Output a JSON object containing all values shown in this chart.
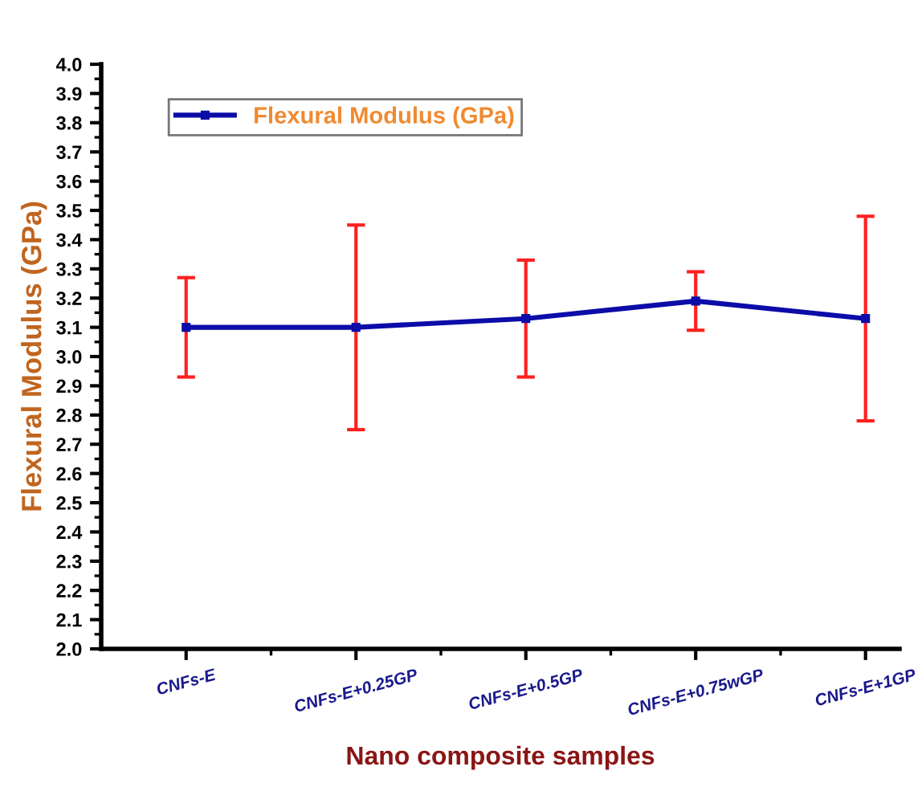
{
  "chart_data": {
    "type": "line",
    "xlabel": "Nano composite samples",
    "ylabel": "Flexural Modulus (GPa)",
    "categories": [
      "CNFs-E",
      "CNFs-E+0.25GP",
      "CNFs-E+0.5GP",
      "CNFs-E+0.75wGP",
      "CNFs-E+1GP"
    ],
    "series": [
      {
        "name": "Flexural Modulus (GPa)",
        "color": "#0c0ca8",
        "values": [
          3.1,
          3.1,
          3.13,
          3.19,
          3.13
        ],
        "errors": [
          0.17,
          0.35,
          0.2,
          0.1,
          0.35
        ]
      }
    ],
    "ylim": [
      2.0,
      4.0
    ],
    "yticks": [
      {
        "value": 2,
        "label": "2.0"
      },
      {
        "value": 2.1,
        "label": "2.1"
      },
      {
        "value": 2.2,
        "label": "2.2"
      },
      {
        "value": 2.3,
        "label": "2.3"
      },
      {
        "value": 2.4,
        "label": "2.4"
      },
      {
        "value": 2.5,
        "label": "2.5"
      },
      {
        "value": 2.6,
        "label": "2.6"
      },
      {
        "value": 2.7,
        "label": "2.7"
      },
      {
        "value": 2.8,
        "label": "2.8"
      },
      {
        "value": 2.9,
        "label": "2.9"
      },
      {
        "value": 3,
        "label": "3.0"
      },
      {
        "value": 3.1,
        "label": "3.1"
      },
      {
        "value": 3.2,
        "label": "3.2"
      },
      {
        "value": 3.3,
        "label": "3.3"
      },
      {
        "value": 3.4,
        "label": "3.4"
      },
      {
        "value": 3.5,
        "label": "3.5"
      },
      {
        "value": 3.6,
        "label": "3.6"
      },
      {
        "value": 3.7,
        "label": "3.7"
      },
      {
        "value": 3.8,
        "label": "3.8"
      },
      {
        "value": 3.9,
        "label": "3.9"
      },
      {
        "value": 4,
        "label": "4.0"
      }
    ],
    "grid": false,
    "legend": "top left",
    "marker": "square",
    "line_style": "solid"
  }
}
